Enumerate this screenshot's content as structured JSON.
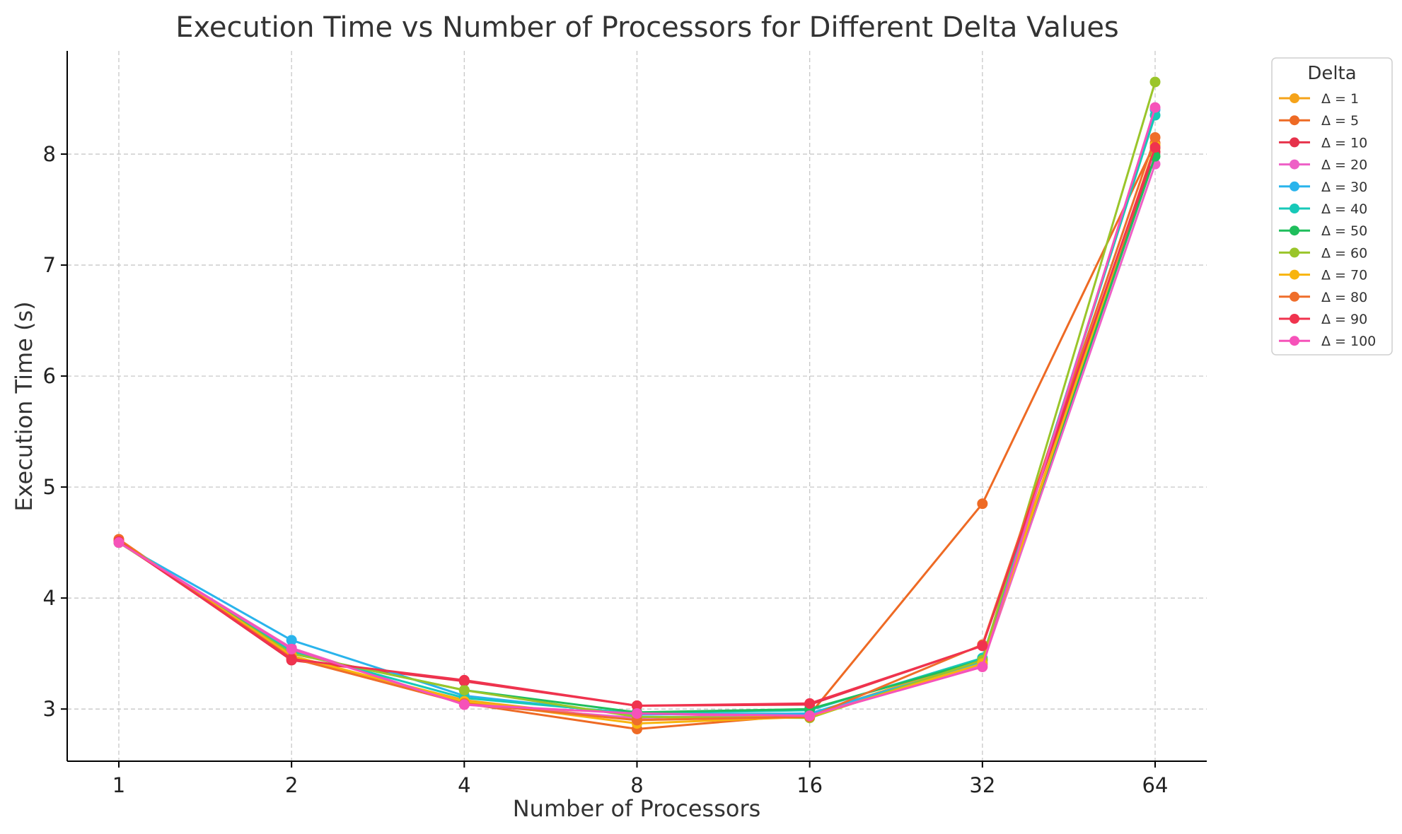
{
  "chart_data": {
    "type": "line",
    "title": "Execution Time vs Number of Processors for Different Delta Values",
    "xlabel": "Number of Processors",
    "ylabel": "Execution Time (s)",
    "categories": [
      "1",
      "2",
      "4",
      "8",
      "16",
      "32",
      "64"
    ],
    "y_ticks": [
      3,
      4,
      5,
      6,
      7,
      8
    ],
    "ylim": [
      2.53,
      8.93
    ],
    "grid": true,
    "legend": {
      "title": "Delta",
      "placement": "right-outside-top"
    },
    "series": [
      {
        "name": "Δ = 1",
        "color": "#f5a31a",
        "values": [
          4.52,
          3.47,
          3.08,
          2.9,
          2.95,
          3.45,
          8.05
        ]
      },
      {
        "name": "Δ = 5",
        "color": "#ee6a24",
        "values": [
          4.53,
          3.46,
          3.05,
          2.82,
          2.95,
          4.85,
          8.1
        ]
      },
      {
        "name": "Δ = 10",
        "color": "#e6324b",
        "values": [
          4.52,
          3.44,
          3.25,
          3.03,
          3.04,
          3.57,
          8.02
        ]
      },
      {
        "name": "Δ = 20",
        "color": "#ee5fc6",
        "values": [
          4.5,
          3.55,
          3.04,
          2.92,
          2.96,
          3.4,
          7.91
        ]
      },
      {
        "name": "Δ = 30",
        "color": "#2ab4ec",
        "values": [
          4.5,
          3.62,
          3.12,
          2.95,
          2.96,
          3.42,
          8.4
        ]
      },
      {
        "name": "Δ = 40",
        "color": "#17c9b8",
        "values": [
          4.5,
          3.52,
          3.1,
          2.96,
          2.99,
          3.46,
          8.35
        ]
      },
      {
        "name": "Δ = 50",
        "color": "#1fbe5c",
        "values": [
          4.51,
          3.5,
          3.17,
          2.97,
          3.0,
          3.44,
          7.98
        ]
      },
      {
        "name": "Δ = 60",
        "color": "#9ac52a",
        "values": [
          4.5,
          3.5,
          3.17,
          2.93,
          2.92,
          3.44,
          8.65
        ]
      },
      {
        "name": "Δ = 70",
        "color": "#f8b40e",
        "values": [
          4.52,
          3.48,
          3.07,
          2.87,
          2.93,
          3.41,
          8.08
        ]
      },
      {
        "name": "Δ = 80",
        "color": "#ef6e2b",
        "values": [
          4.52,
          3.46,
          3.05,
          2.9,
          2.93,
          3.58,
          8.15
        ]
      },
      {
        "name": "Δ = 90",
        "color": "#f0334e",
        "values": [
          4.51,
          3.45,
          3.26,
          3.03,
          3.05,
          3.57,
          8.06
        ]
      },
      {
        "name": "Δ = 100",
        "color": "#f652b9",
        "values": [
          4.5,
          3.54,
          3.04,
          2.96,
          2.94,
          3.38,
          8.42
        ]
      }
    ]
  }
}
